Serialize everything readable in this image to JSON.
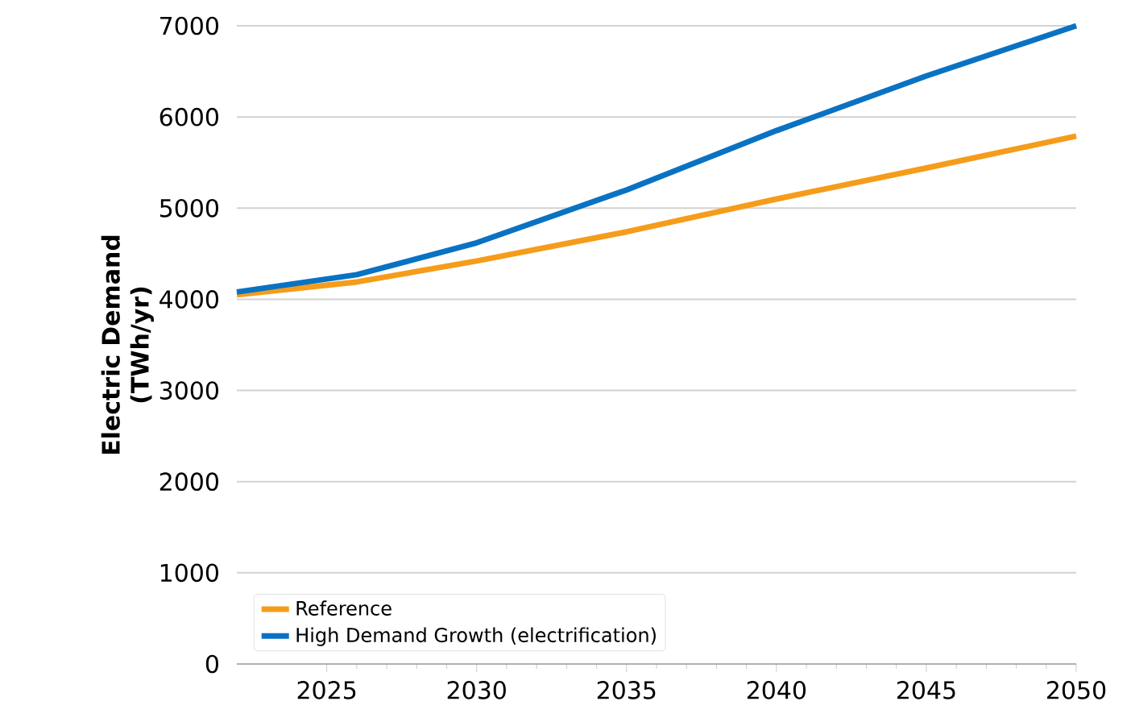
{
  "chart_data": {
    "type": "line",
    "ylabel": "Electric Demand (TWh/yr)",
    "x": [
      2022,
      2026,
      2030,
      2035,
      2040,
      2045,
      2050
    ],
    "series": [
      {
        "name": "Reference",
        "color": "#f59c1a",
        "values": [
          4050,
          4190,
          4420,
          4740,
          5100,
          5440,
          5790
        ]
      },
      {
        "name": "High Demand Growth (electrification)",
        "color": "#0a72c2",
        "values": [
          4080,
          4270,
          4620,
          5200,
          5850,
          6450,
          7000
        ]
      }
    ],
    "xlim": [
      2022,
      2050
    ],
    "xticks": [
      2025,
      2030,
      2035,
      2040,
      2045,
      2050
    ],
    "ylim": [
      0,
      7000
    ],
    "yticks": [
      0,
      1000,
      2000,
      3000,
      4000,
      5000,
      6000,
      7000
    ],
    "grid": "y",
    "legend": "bottom left",
    "marker": "none",
    "line_style": "solid"
  }
}
